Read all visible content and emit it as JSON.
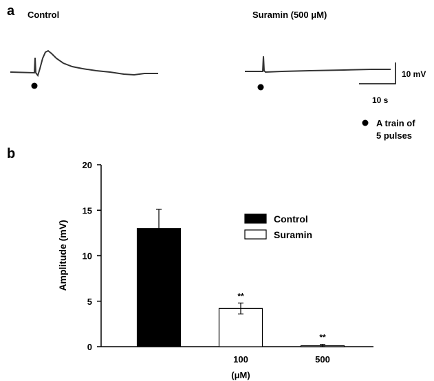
{
  "panel_a": {
    "letter": "a",
    "control_title": "Control",
    "suramin_title": "Suramin (500 μM)",
    "scale_v": "10 mV",
    "scale_t": "10 s",
    "legend_line1": "A train of",
    "legend_line2": "5 pulses"
  },
  "panel_b": {
    "letter": "b"
  },
  "chart_data": {
    "type": "bar",
    "categories": [
      "",
      "100",
      "500"
    ],
    "series": [
      {
        "name": "Control",
        "values": [
          13.0,
          null,
          null
        ],
        "errors": [
          2.1,
          null,
          null
        ],
        "color": "#000000"
      },
      {
        "name": "Suramin",
        "values": [
          null,
          4.2,
          0.1
        ],
        "errors": [
          null,
          0.6,
          0.15
        ],
        "color": "#ffffff"
      }
    ],
    "significance": [
      "",
      "**",
      "**"
    ],
    "xlabel": "(μM)",
    "ylabel": "Amplitude (mV)",
    "ylim": [
      0,
      20
    ],
    "yticks": [
      "0",
      "5",
      "10",
      "15",
      "20"
    ],
    "legend_position": "right"
  }
}
